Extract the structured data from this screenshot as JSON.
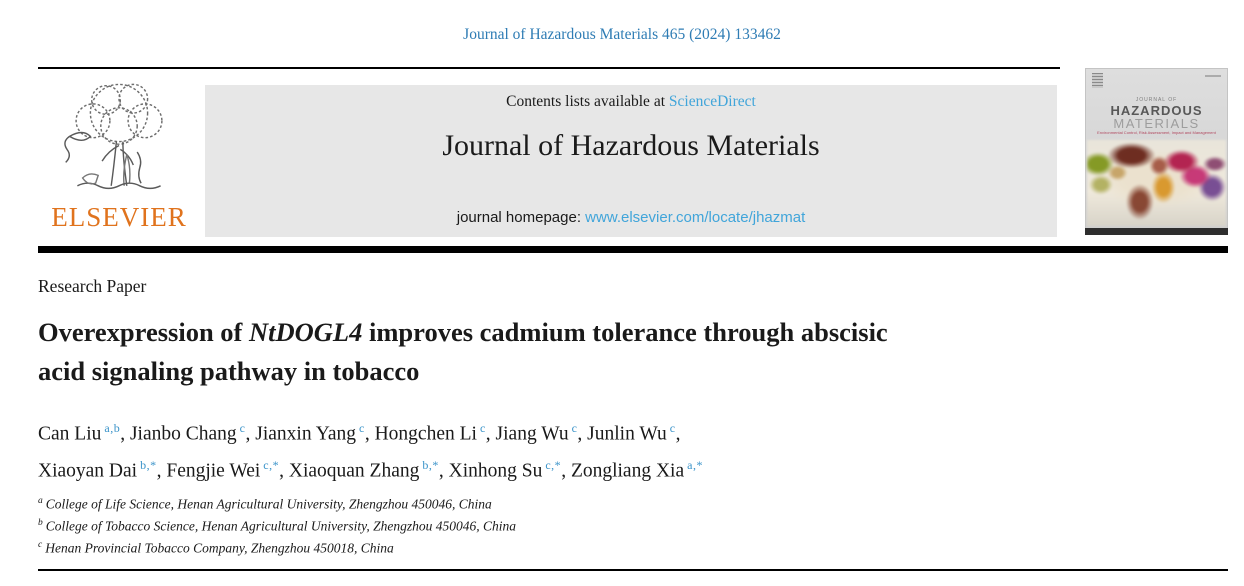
{
  "page": {
    "citation": "Journal of Hazardous Materials 465 (2024) 133462"
  },
  "banner": {
    "contents_prefix": "Contents lists available at ",
    "contents_link": "ScienceDirect",
    "journal_title": "Journal of Hazardous Materials",
    "homepage_prefix": "journal homepage: ",
    "homepage_link": "www.elsevier.com/locate/jhazmat"
  },
  "publisher": {
    "name": "ELSEVIER",
    "logo_icon": "elsevier-tree-logo"
  },
  "cover": {
    "line1": "JOURNAL OF",
    "line2": "HAZARDOUS",
    "line3": "MATERIALS",
    "subtitle": "Environmental Control, Risk Assessment, Impact and Management"
  },
  "article": {
    "type_label": "Research Paper",
    "title_lines": [
      [
        {
          "text": "Overexpression of "
        },
        {
          "text": "NtDOGL4",
          "italic": true
        },
        {
          "text": " improves cadmium tolerance through abscisic"
        }
      ],
      [
        {
          "text": "acid signaling pathway in tobacco"
        }
      ]
    ],
    "authors": [
      {
        "name": "Can Liu",
        "sup": "a,b"
      },
      {
        "name": "Jianbo Chang",
        "sup": "c"
      },
      {
        "name": "Jianxin Yang",
        "sup": "c"
      },
      {
        "name": "Hongchen Li",
        "sup": "c"
      },
      {
        "name": "Jiang Wu",
        "sup": "c"
      },
      {
        "name": "Junlin Wu",
        "sup": "c",
        "break_after": true
      },
      {
        "name": "Xiaoyan Dai",
        "sup": "b,*"
      },
      {
        "name": "Fengjie Wei",
        "sup": "c,*"
      },
      {
        "name": "Xiaoquan Zhang",
        "sup": "b,*"
      },
      {
        "name": "Xinhong Su",
        "sup": "c,*"
      },
      {
        "name": "Zongliang Xia",
        "sup": "a,*"
      }
    ],
    "affiliations": [
      {
        "sup": "a",
        "text": "College of Life Science, Henan Agricultural University, Zhengzhou 450046, China"
      },
      {
        "sup": "b",
        "text": "College of Tobacco Science, Henan Agricultural University, Zhengzhou 450046, China"
      },
      {
        "sup": "c",
        "text": "Henan Provincial Tobacco Company, Zhengzhou 450018, China"
      }
    ]
  },
  "colors": {
    "citation_blue": "#2e7cb4",
    "link_blue": "#41a5da",
    "author_sup_blue": "#3a93c9",
    "elsevier_orange": "#e0731d",
    "banner_gray": "#e7e7e7"
  }
}
